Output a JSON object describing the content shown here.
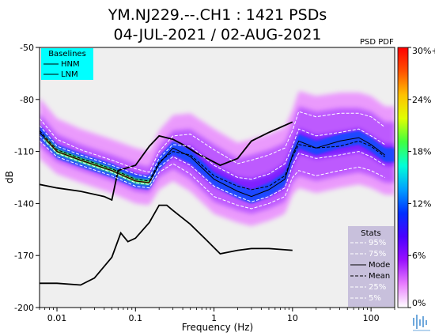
{
  "chart_data": {
    "type": "heatmap",
    "title_line1": "YM.NJ229.--.CH1 : 1421 PSDs",
    "title_line2": "04-JUL-2021 / 02-AUG-2021",
    "corner_label": "PSD PDF",
    "xlabel": "Frequency (Hz)",
    "ylabel": "dB",
    "xscale": "log",
    "xlim": [
      0.006,
      200
    ],
    "ylim": [
      -200,
      -50
    ],
    "x_ticks": [
      {
        "value": 0.01,
        "label": "0.01"
      },
      {
        "value": 0.1,
        "label": "0.1"
      },
      {
        "value": 1,
        "label": "1"
      },
      {
        "value": 10,
        "label": "10"
      },
      {
        "value": 100,
        "label": "100"
      }
    ],
    "y_ticks": [
      {
        "value": -50,
        "label": "-50"
      },
      {
        "value": -80,
        "label": "-80"
      },
      {
        "value": -110,
        "label": "-110"
      },
      {
        "value": -140,
        "label": "-140"
      },
      {
        "value": -170,
        "label": "-170"
      },
      {
        "value": -200,
        "label": "-200"
      }
    ],
    "colorbar": {
      "range": [
        0,
        30
      ],
      "colors": [
        "#ffffff",
        "#e87dff",
        "#9a10ff",
        "#4a00ff",
        "#0030ff",
        "#00a0ff",
        "#00ffd8",
        "#40ff40",
        "#e0ff00",
        "#ffc000",
        "#ff5000",
        "#ff0000"
      ],
      "ticks": [
        {
          "value": 0,
          "label": "0%"
        },
        {
          "value": 6,
          "label": "6%"
        },
        {
          "value": 12,
          "label": "12%"
        },
        {
          "value": 18,
          "label": "18%"
        },
        {
          "value": 24,
          "label": "24%"
        },
        {
          "value": 30,
          "label": "30%+"
        }
      ]
    },
    "baselines_legend": {
      "title": "Baselines",
      "items": [
        "HNM",
        "LNM"
      ],
      "background": "#00ffff"
    },
    "stats_legend": {
      "title": "Stats",
      "items": [
        "95%",
        "75%",
        "Mode",
        "Mean",
        "25%",
        "5%"
      ],
      "background": "#c8c0dc"
    },
    "series": [
      {
        "name": "HNM",
        "color": "#000000",
        "x": [
          0.006,
          0.01,
          0.02,
          0.04,
          0.05,
          0.06,
          0.1,
          0.15,
          0.2,
          0.3,
          0.4,
          0.6,
          0.9,
          1.2,
          2,
          3,
          5,
          10
        ],
        "y": [
          -129,
          -131,
          -133,
          -136,
          -138,
          -121,
          -118,
          -107,
          -101,
          -103,
          -106,
          -111,
          -115,
          -118,
          -114,
          -104,
          -99,
          -93
        ]
      },
      {
        "name": "LNM",
        "color": "#000000",
        "x": [
          0.006,
          0.008,
          0.01,
          0.02,
          0.03,
          0.05,
          0.065,
          0.08,
          0.1,
          0.15,
          0.2,
          0.25,
          0.3,
          0.5,
          0.8,
          1.2,
          2,
          3,
          5,
          10
        ],
        "y": [
          -186,
          -186,
          -186,
          -187,
          -183,
          -171,
          -157,
          -162,
          -160,
          -151,
          -141,
          -141,
          -144,
          -152,
          -161,
          -169,
          -167,
          -166,
          -166,
          -167
        ]
      },
      {
        "name": "Mode",
        "color": "#000000",
        "style": "solid",
        "x": [
          0.006,
          0.01,
          0.02,
          0.05,
          0.1,
          0.15,
          0.2,
          0.3,
          0.5,
          1,
          2,
          3,
          5,
          8,
          10,
          12,
          20,
          40,
          70,
          100,
          150
        ],
        "y": [
          -99,
          -110,
          -115,
          -121,
          -127,
          -128,
          -117,
          -108,
          -113,
          -126,
          -133,
          -136,
          -132,
          -126,
          -112,
          -104,
          -108,
          -104,
          -102,
          -106,
          -112
        ]
      },
      {
        "name": "Mean",
        "color": "#000000",
        "style": "dashed",
        "x": [
          0.006,
          0.01,
          0.02,
          0.05,
          0.1,
          0.15,
          0.2,
          0.3,
          0.5,
          1,
          2,
          3,
          5,
          8,
          10,
          12,
          20,
          40,
          70,
          100,
          150
        ],
        "y": [
          -98,
          -109,
          -114,
          -120,
          -126,
          -127,
          -116,
          -110,
          -112,
          -124,
          -130,
          -132,
          -130,
          -124,
          -113,
          -106,
          -108,
          -107,
          -104,
          -107,
          -113
        ]
      },
      {
        "name": "95%",
        "color": "#ffffff",
        "style": "dashed",
        "x": [
          0.006,
          0.01,
          0.02,
          0.05,
          0.1,
          0.15,
          0.2,
          0.3,
          0.5,
          1,
          2,
          3,
          5,
          8,
          10,
          12,
          20,
          40,
          70,
          100,
          150
        ],
        "y": [
          -91,
          -103,
          -109,
          -115,
          -120,
          -122,
          -110,
          -101,
          -100,
          -109,
          -117,
          -115,
          -112,
          -108,
          -98,
          -87,
          -90,
          -88,
          -88,
          -90,
          -96
        ]
      },
      {
        "name": "75%",
        "color": "#ffffff",
        "style": "dashed",
        "x": [
          0.006,
          0.01,
          0.02,
          0.05,
          0.1,
          0.15,
          0.2,
          0.3,
          0.5,
          1,
          2,
          3,
          5,
          8,
          10,
          12,
          20,
          40,
          70,
          100,
          150
        ],
        "y": [
          -95,
          -107,
          -112,
          -118,
          -123,
          -125,
          -114,
          -106,
          -107,
          -118,
          -125,
          -126,
          -123,
          -117,
          -107,
          -97,
          -101,
          -99,
          -97,
          -101,
          -106
        ]
      },
      {
        "name": "25%",
        "color": "#ffffff",
        "style": "dashed",
        "x": [
          0.006,
          0.01,
          0.02,
          0.05,
          0.1,
          0.15,
          0.2,
          0.3,
          0.5,
          1,
          2,
          3,
          5,
          8,
          10,
          12,
          20,
          40,
          70,
          100,
          150
        ],
        "y": [
          -101,
          -111,
          -116,
          -122,
          -128,
          -129,
          -119,
          -113,
          -118,
          -130,
          -136,
          -139,
          -136,
          -131,
          -118,
          -111,
          -114,
          -112,
          -110,
          -113,
          -118
        ]
      },
      {
        "name": "5%",
        "color": "#ffffff",
        "style": "dashed",
        "x": [
          0.006,
          0.01,
          0.02,
          0.05,
          0.1,
          0.15,
          0.2,
          0.3,
          0.5,
          1,
          2,
          3,
          5,
          8,
          10,
          12,
          20,
          40,
          70,
          100,
          150
        ],
        "y": [
          -104,
          -113,
          -118,
          -124,
          -130,
          -131,
          -122,
          -117,
          -123,
          -136,
          -141,
          -143,
          -140,
          -136,
          -125,
          -121,
          -124,
          -121,
          -119,
          -121,
          -125
        ]
      }
    ]
  }
}
